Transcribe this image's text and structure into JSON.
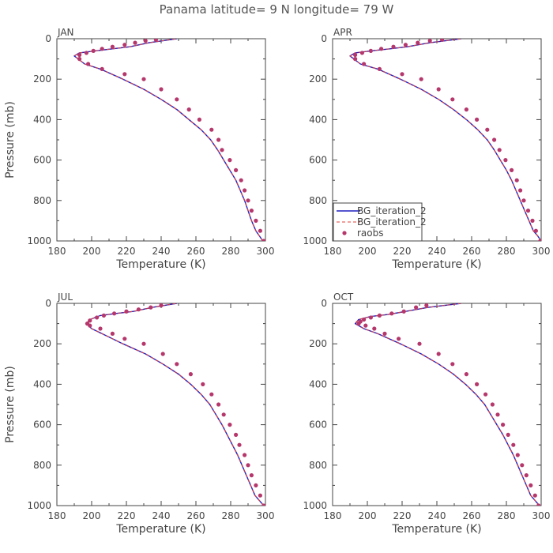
{
  "figure": {
    "title": "Panama  latitude= 9 N longitude= 79 W"
  },
  "colors": {
    "model_line": "#1f1fbf",
    "model_dash": "#e0403a",
    "obs_points": "#b5376b",
    "axis": "#444444"
  },
  "chart_data": [
    {
      "panel": "JAN",
      "type": "line",
      "xlabel": "Temperature (K)",
      "ylabel": "Pressure (mb)",
      "xlim": [
        180,
        300
      ],
      "ylim": [
        1000,
        0
      ],
      "xticks": [
        180,
        200,
        220,
        240,
        260,
        280,
        300
      ],
      "yticks": [
        0,
        200,
        400,
        600,
        800,
        1000
      ],
      "grid": false,
      "legend": null,
      "series": [
        {
          "name": "BG_iteration_2",
          "style": "solid",
          "x": [
            298.5,
            296.5,
            294.5,
            292,
            290,
            288,
            285.5,
            283,
            279.5,
            276,
            272.5,
            268.5,
            263,
            256,
            249,
            240,
            230,
            218,
            205,
            196,
            190,
            193,
            202,
            212,
            222,
            233,
            249
          ],
          "y": [
            1000,
            975,
            950,
            900,
            850,
            800,
            750,
            700,
            650,
            600,
            550,
            500,
            450,
            400,
            350,
            300,
            250,
            200,
            150,
            125,
            85,
            70,
            60,
            50,
            40,
            20,
            0
          ]
        },
        {
          "name": "BG_iteration_2",
          "style": "dashed",
          "x": [
            298.5,
            296.5,
            294.5,
            292,
            290,
            288,
            285.5,
            283,
            279.5,
            276,
            272.5,
            268.5,
            263,
            256,
            249,
            240,
            230,
            218,
            205,
            196,
            190,
            193,
            202,
            212,
            222,
            233,
            249
          ],
          "y": [
            1000,
            975,
            950,
            900,
            850,
            800,
            750,
            700,
            650,
            600,
            550,
            500,
            450,
            400,
            350,
            300,
            250,
            200,
            150,
            125,
            85,
            70,
            60,
            50,
            40,
            20,
            0
          ]
        },
        {
          "name": "raobs",
          "style": "points",
          "x": [
            299,
            297,
            294.5,
            292,
            290,
            288,
            286,
            283,
            279.5,
            275,
            273,
            269,
            262,
            256,
            249,
            240,
            230,
            219,
            206,
            198,
            193,
            193,
            197,
            201,
            206,
            212,
            219,
            225,
            231,
            237
          ],
          "y": [
            1000,
            950,
            900,
            850,
            800,
            750,
            700,
            650,
            600,
            550,
            500,
            450,
            400,
            350,
            300,
            250,
            200,
            175,
            150,
            125,
            100,
            80,
            70,
            60,
            50,
            40,
            30,
            20,
            10,
            5
          ]
        }
      ]
    },
    {
      "panel": "APR",
      "type": "line",
      "xlabel": "Temperature (K)",
      "ylabel": "",
      "xlim": [
        180,
        300
      ],
      "ylim": [
        1000,
        0
      ],
      "xticks": [
        180,
        200,
        220,
        240,
        260,
        280,
        300
      ],
      "yticks": [
        0,
        200,
        400,
        600,
        800,
        1000
      ],
      "grid": false,
      "legend": "bottom-left",
      "series": [
        {
          "name": "BG_iteration_2",
          "style": "solid",
          "x": [
            300,
            298,
            295.5,
            293,
            290.5,
            288,
            285.5,
            283,
            280,
            276.5,
            273,
            269,
            263.5,
            257,
            249.5,
            241,
            231,
            219,
            206,
            196,
            190,
            193,
            202,
            213,
            223,
            236,
            254
          ],
          "y": [
            1000,
            975,
            950,
            900,
            850,
            800,
            750,
            700,
            650,
            600,
            550,
            500,
            450,
            400,
            350,
            300,
            250,
            200,
            150,
            125,
            85,
            70,
            60,
            50,
            40,
            20,
            0
          ]
        },
        {
          "name": "BG_iteration_2",
          "style": "dashed",
          "x": [
            300,
            298,
            295.5,
            293,
            290.5,
            288,
            285.5,
            283,
            280,
            276.5,
            273,
            269,
            263.5,
            257,
            249.5,
            241,
            231,
            219,
            206,
            196,
            190,
            193,
            202,
            213,
            223,
            236,
            254
          ],
          "y": [
            1000,
            975,
            950,
            900,
            850,
            800,
            750,
            700,
            650,
            600,
            550,
            500,
            450,
            400,
            350,
            300,
            250,
            200,
            150,
            125,
            85,
            70,
            60,
            50,
            40,
            20,
            0
          ]
        },
        {
          "name": "raobs",
          "style": "points",
          "x": [
            299.5,
            297,
            295,
            292.5,
            290,
            288,
            286,
            283,
            279.5,
            276,
            273,
            269,
            263,
            257,
            249,
            241,
            231,
            220,
            207,
            198,
            193,
            193,
            197,
            202,
            208,
            215,
            222,
            229,
            236,
            243
          ],
          "y": [
            1000,
            950,
            900,
            850,
            800,
            750,
            700,
            650,
            600,
            550,
            500,
            450,
            400,
            350,
            300,
            250,
            200,
            175,
            150,
            125,
            100,
            80,
            70,
            60,
            50,
            40,
            30,
            20,
            10,
            5
          ]
        }
      ]
    },
    {
      "panel": "JUL",
      "type": "line",
      "xlabel": "Temperature (K)",
      "ylabel": "Pressure (mb)",
      "xlim": [
        180,
        300
      ],
      "ylim": [
        1000,
        0
      ],
      "xticks": [
        180,
        200,
        220,
        240,
        260,
        280,
        300
      ],
      "yticks": [
        0,
        200,
        400,
        600,
        800,
        1000
      ],
      "grid": false,
      "legend": null,
      "series": [
        {
          "name": "BG_iteration_2",
          "style": "solid",
          "x": [
            299,
            296.5,
            294,
            291.5,
            289,
            286.5,
            284,
            281,
            278,
            275,
            271.5,
            268,
            263,
            257,
            250,
            241,
            231,
            218,
            206,
            200,
            197,
            199,
            205,
            214,
            224,
            235,
            249
          ],
          "y": [
            1000,
            975,
            950,
            900,
            850,
            800,
            750,
            700,
            650,
            600,
            550,
            500,
            450,
            400,
            350,
            300,
            250,
            200,
            150,
            125,
            100,
            80,
            60,
            50,
            40,
            20,
            0
          ]
        },
        {
          "name": "BG_iteration_2",
          "style": "dashed",
          "x": [
            299,
            296.5,
            294,
            291.5,
            289,
            286.5,
            284,
            281,
            278,
            275,
            271.5,
            268,
            263,
            257,
            250,
            241,
            231,
            218,
            206,
            200,
            197,
            199,
            205,
            214,
            224,
            235,
            249
          ],
          "y": [
            1000,
            975,
            950,
            900,
            850,
            800,
            750,
            700,
            650,
            600,
            550,
            500,
            450,
            400,
            350,
            300,
            250,
            200,
            150,
            125,
            100,
            80,
            60,
            50,
            40,
            20,
            0
          ]
        },
        {
          "name": "raobs",
          "style": "points",
          "x": [
            299,
            297,
            294.5,
            292,
            290,
            288,
            285,
            283,
            279.5,
            276,
            273,
            269,
            264,
            257,
            249,
            241,
            230,
            219,
            212,
            205,
            199,
            197.5,
            199,
            203,
            207,
            213,
            220,
            227,
            234,
            240
          ],
          "y": [
            1000,
            950,
            900,
            850,
            800,
            750,
            700,
            650,
            600,
            550,
            500,
            450,
            400,
            350,
            300,
            250,
            200,
            175,
            150,
            125,
            110,
            100,
            85,
            70,
            60,
            50,
            40,
            30,
            20,
            10
          ]
        }
      ]
    },
    {
      "panel": "OCT",
      "type": "line",
      "xlabel": "Temperature (K)",
      "ylabel": "",
      "xlim": [
        180,
        300
      ],
      "ylim": [
        1000,
        0
      ],
      "xticks": [
        180,
        200,
        220,
        240,
        260,
        280,
        300
      ],
      "yticks": [
        0,
        200,
        400,
        600,
        800,
        1000
      ],
      "grid": false,
      "legend": null,
      "series": [
        {
          "name": "BG_iteration_2",
          "style": "solid",
          "x": [
            299,
            296.5,
            294,
            291.5,
            289,
            286.5,
            284,
            281,
            278,
            274.5,
            271,
            267.5,
            262.5,
            256.5,
            249.5,
            241,
            231,
            219,
            206,
            198,
            193,
            195,
            202,
            212,
            222,
            235,
            254
          ],
          "y": [
            1000,
            975,
            950,
            900,
            850,
            800,
            750,
            700,
            650,
            600,
            550,
            500,
            450,
            400,
            350,
            300,
            250,
            200,
            150,
            125,
            100,
            80,
            65,
            55,
            40,
            20,
            0
          ]
        },
        {
          "name": "BG_iteration_2",
          "style": "dashed",
          "x": [
            299,
            296.5,
            294,
            291.5,
            289,
            286.5,
            284,
            281,
            278,
            274.5,
            271,
            267.5,
            262.5,
            256.5,
            249.5,
            241,
            231,
            219,
            206,
            198,
            193,
            195,
            202,
            212,
            222,
            235,
            254
          ],
          "y": [
            1000,
            975,
            950,
            900,
            850,
            800,
            750,
            700,
            650,
            600,
            550,
            500,
            450,
            400,
            350,
            300,
            250,
            200,
            150,
            125,
            100,
            80,
            65,
            55,
            40,
            20,
            0
          ]
        },
        {
          "name": "raobs",
          "style": "points",
          "x": [
            298.5,
            296.5,
            294,
            291.5,
            289,
            286.5,
            284,
            281,
            278,
            275,
            272,
            268,
            263,
            257,
            249,
            241,
            230,
            218,
            210,
            204,
            199,
            195,
            196,
            198,
            202,
            207,
            214,
            221,
            228,
            234
          ],
          "y": [
            1000,
            950,
            900,
            850,
            800,
            750,
            700,
            650,
            600,
            550,
            500,
            450,
            400,
            350,
            300,
            250,
            200,
            175,
            150,
            125,
            110,
            100,
            90,
            80,
            70,
            60,
            50,
            40,
            20,
            10
          ]
        }
      ]
    }
  ]
}
